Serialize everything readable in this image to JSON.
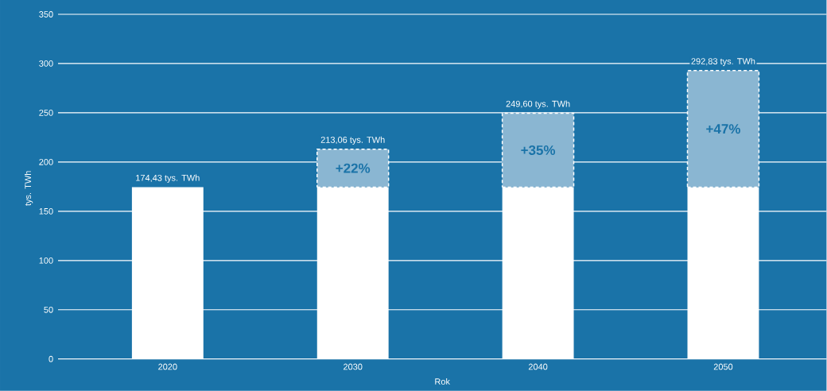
{
  "chart_data": {
    "type": "bar",
    "stacked": true,
    "xlabel": "Rok",
    "ylabel": "tys. TWh",
    "categories": [
      "2020",
      "2030",
      "2040",
      "2050"
    ],
    "series": [
      {
        "color": "#ffffff",
        "values": [
          174.43,
          174.43,
          174.43,
          174.43
        ]
      },
      {
        "color": "#8ab6d2",
        "line_style": "dashed",
        "values": [
          null,
          38.63,
          75.17,
          118.4
        ]
      }
    ],
    "annotations": [
      "+22%",
      "+35%",
      "+47%"
    ],
    "totals": [
      "174,43 tys. TWh",
      "213,06 tys. TWh",
      "249,60 tys. TWh",
      "292,83 tys. TWh"
    ],
    "ylim": [
      0,
      350
    ],
    "yticks": [
      0,
      50,
      100,
      150,
      200,
      250,
      300,
      350
    ],
    "grid": "y"
  }
}
